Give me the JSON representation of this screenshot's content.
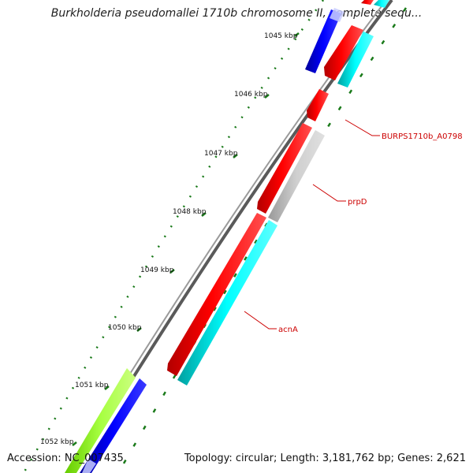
{
  "title": "Burkholderia pseudomallei 1710b chromosome II, complete sequ...",
  "accession": "Accession: NC_007435",
  "summary": "Topology: circular; Length: 3,181,762 bp; Genes: 2,621",
  "ticks": [
    "1045 kbp",
    "1046 kbp",
    "1047 kbp",
    "1048 kbp",
    "1049 kbp",
    "1050 kbp",
    "1051 kbp",
    "1052 kbp"
  ],
  "labels": [
    "BURPS1710b_A0798",
    "prpD",
    "acnA"
  ],
  "colors": {
    "forward_cds": "#ff0000",
    "reverse_cds": "#0000ff",
    "cyan": "#00e5e5",
    "grey": "#bfbfbf",
    "lime": "#99ff33",
    "backbone": "#808080",
    "ticks": "#1a7a1a",
    "label": "#cc0000"
  }
}
